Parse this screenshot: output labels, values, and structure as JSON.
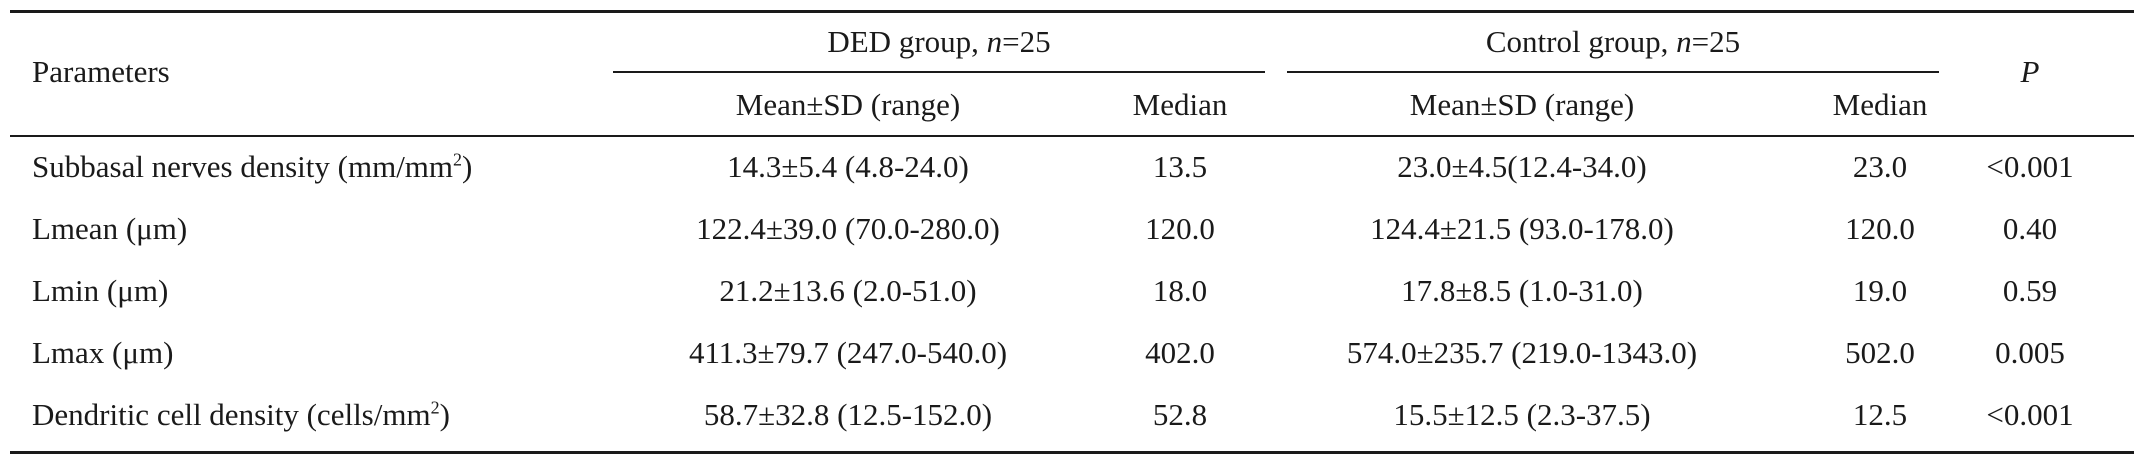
{
  "headers": {
    "parameters": "Parameters",
    "ded_group": "DED group, ",
    "ded_n": "n",
    "ded_eq": "=25",
    "control_group": "Control group, ",
    "control_n": "n",
    "control_eq": "=25",
    "ded_mean": "Mean±SD (range)",
    "ded_median": "Median",
    "control_mean": "Mean±SD (range)",
    "control_median": "Median",
    "p": "P"
  },
  "rows": [
    {
      "param": "Subbasal nerves density (mm/mm",
      "param_sup": "2",
      "param_tail": ")",
      "ded_mean": "14.3±5.4 (4.8-24.0)",
      "ded_median": "13.5",
      "control_mean": "23.0±4.5(12.4-34.0)",
      "control_median": "23.0",
      "p": "<0.001"
    },
    {
      "param": "Lmean (μm)",
      "ded_mean": "122.4±39.0 (70.0-280.0)",
      "ded_median": "120.0",
      "control_mean": "124.4±21.5 (93.0-178.0)",
      "control_median": "120.0",
      "p": "0.40"
    },
    {
      "param": "Lmin (μm)",
      "ded_mean": "21.2±13.6 (2.0-51.0)",
      "ded_median": "18.0",
      "control_mean": "17.8±8.5 (1.0-31.0)",
      "control_median": "19.0",
      "p": "0.59"
    },
    {
      "param": "Lmax (μm)",
      "ded_mean": "411.3±79.7 (247.0-540.0)",
      "ded_median": "402.0",
      "control_mean": "574.0±235.7 (219.0-1343.0)",
      "control_median": "502.0",
      "p": "0.005"
    },
    {
      "param": "Dendritic cell density (cells/mm",
      "param_sup": "2",
      "param_tail": ")",
      "ded_mean": "58.7±32.8 (12.5-152.0)",
      "ded_median": "52.8",
      "control_mean": "15.5±12.5 (2.3-37.5)",
      "control_median": "12.5",
      "p": "<0.001"
    }
  ]
}
